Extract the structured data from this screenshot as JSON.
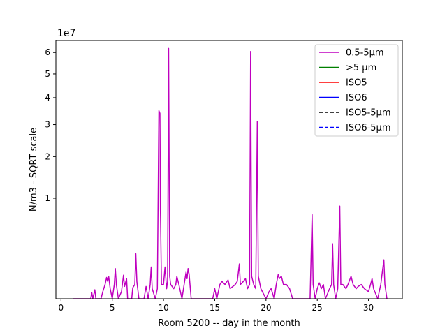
{
  "chart_data": {
    "type": "line",
    "xlabel": "Room 5200 -- day in the month",
    "ylabel": "N/m3 - SQRT scale",
    "y_offset_label": "1e7",
    "y_scale": "sqrt",
    "xlim": [
      -0.5,
      33.3
    ],
    "ylim": [
      0,
      6.6
    ],
    "x_ticks": [
      0,
      5,
      10,
      15,
      20,
      25,
      30
    ],
    "x_tick_labels": [
      "0",
      "5",
      "10",
      "15",
      "20",
      "25",
      "30"
    ],
    "y_ticks": [
      1,
      2,
      3,
      4,
      5,
      6
    ],
    "y_tick_labels": [
      "1",
      "2",
      "3",
      "4",
      "5",
      "6"
    ],
    "legend_position": "top-right",
    "grid": false,
    "series": [
      {
        "name": "0.5-5µm",
        "color": "#bf00bf",
        "dash": "solid",
        "points": [
          [
            1.2,
            0
          ],
          [
            2.9,
            0
          ],
          [
            3.0,
            0.004
          ],
          [
            3.1,
            0
          ],
          [
            3.3,
            0.008
          ],
          [
            3.4,
            0
          ],
          [
            3.9,
            0
          ],
          [
            4.1,
            0.006
          ],
          [
            4.3,
            0.02
          ],
          [
            4.45,
            0.045
          ],
          [
            4.55,
            0.03
          ],
          [
            4.65,
            0.05
          ],
          [
            4.8,
            0.01
          ],
          [
            5.0,
            0
          ],
          [
            5.2,
            0.02
          ],
          [
            5.3,
            0.09
          ],
          [
            5.4,
            0.02
          ],
          [
            5.6,
            0
          ],
          [
            5.9,
            0.005
          ],
          [
            6.1,
            0.055
          ],
          [
            6.2,
            0.015
          ],
          [
            6.4,
            0.04
          ],
          [
            6.5,
            0
          ],
          [
            6.9,
            0
          ],
          [
            7.0,
            0.012
          ],
          [
            7.2,
            0.02
          ],
          [
            7.3,
            0.2
          ],
          [
            7.4,
            0.03
          ],
          [
            7.6,
            0
          ],
          [
            8.1,
            0
          ],
          [
            8.3,
            0.015
          ],
          [
            8.5,
            0
          ],
          [
            8.7,
            0.02
          ],
          [
            8.8,
            0.1
          ],
          [
            8.9,
            0.01
          ],
          [
            9.2,
            0
          ],
          [
            9.4,
            0.01
          ],
          [
            9.55,
            3.5
          ],
          [
            9.65,
            3.4
          ],
          [
            9.7,
            0.8
          ],
          [
            9.8,
            0.02
          ],
          [
            10.0,
            0.02
          ],
          [
            10.15,
            0.1
          ],
          [
            10.3,
            0.01
          ],
          [
            10.4,
            0.03
          ],
          [
            10.5,
            6.2
          ],
          [
            10.6,
            0.05
          ],
          [
            10.7,
            0.02
          ],
          [
            11.0,
            0.01
          ],
          [
            11.2,
            0.02
          ],
          [
            11.3,
            0.05
          ],
          [
            11.5,
            0.02
          ],
          [
            11.8,
            0
          ],
          [
            12.1,
            0.04
          ],
          [
            12.2,
            0.07
          ],
          [
            12.3,
            0.04
          ],
          [
            12.4,
            0.09
          ],
          [
            12.5,
            0.06
          ],
          [
            12.7,
            0
          ],
          [
            14.8,
            0
          ],
          [
            15.0,
            0.01
          ],
          [
            15.2,
            0
          ],
          [
            15.5,
            0.02
          ],
          [
            15.7,
            0.03
          ],
          [
            16.0,
            0.02
          ],
          [
            16.3,
            0.035
          ],
          [
            16.5,
            0.01
          ],
          [
            17.0,
            0.02
          ],
          [
            17.2,
            0.03
          ],
          [
            17.4,
            0.12
          ],
          [
            17.5,
            0.02
          ],
          [
            17.8,
            0.03
          ],
          [
            18.0,
            0.04
          ],
          [
            18.2,
            0.01
          ],
          [
            18.4,
            0.02
          ],
          [
            18.5,
            6.05
          ],
          [
            18.6,
            0.05
          ],
          [
            18.8,
            0.02
          ],
          [
            19.0,
            0.01
          ],
          [
            19.15,
            3.1
          ],
          [
            19.25,
            0.05
          ],
          [
            19.5,
            0.01
          ],
          [
            20.0,
            0
          ],
          [
            20.3,
            0.005
          ],
          [
            20.5,
            0.01
          ],
          [
            20.8,
            0
          ],
          [
            21.0,
            0.02
          ],
          [
            21.2,
            0.06
          ],
          [
            21.3,
            0.04
          ],
          [
            21.5,
            0.05
          ],
          [
            21.7,
            0.02
          ],
          [
            22.0,
            0.02
          ],
          [
            22.3,
            0.01
          ],
          [
            22.6,
            0
          ],
          [
            24.3,
            0
          ],
          [
            24.5,
            0.7
          ],
          [
            24.6,
            0.02
          ],
          [
            24.8,
            0
          ],
          [
            25.0,
            0.01
          ],
          [
            25.2,
            0.025
          ],
          [
            25.4,
            0.01
          ],
          [
            25.6,
            0.02
          ],
          [
            25.8,
            0
          ],
          [
            26.2,
            0.01
          ],
          [
            26.4,
            0.02
          ],
          [
            26.5,
            0.3
          ],
          [
            26.6,
            0.02
          ],
          [
            26.8,
            0
          ],
          [
            27.0,
            0.01
          ],
          [
            27.2,
            0.85
          ],
          [
            27.3,
            0.02
          ],
          [
            27.5,
            0.02
          ],
          [
            27.8,
            0.01
          ],
          [
            28.0,
            0.02
          ],
          [
            28.3,
            0.05
          ],
          [
            28.5,
            0.02
          ],
          [
            28.8,
            0.01
          ],
          [
            29.0,
            0.015
          ],
          [
            29.3,
            0.02
          ],
          [
            29.6,
            0.01
          ],
          [
            30.0,
            0.005
          ],
          [
            30.2,
            0.02
          ],
          [
            30.35,
            0.04
          ],
          [
            30.5,
            0.01
          ],
          [
            30.9,
            0
          ],
          [
            31.2,
            0.02
          ],
          [
            31.3,
            0.05
          ],
          [
            31.5,
            0.15
          ],
          [
            31.6,
            0.02
          ],
          [
            31.8,
            0
          ]
        ]
      },
      {
        "name": ">5 µm",
        "color": "#008000",
        "dash": "solid",
        "points": []
      },
      {
        "name": "ISO5",
        "color": "#ff0000",
        "dash": "solid",
        "points": []
      },
      {
        "name": "ISO6",
        "color": "#0000ff",
        "dash": "solid",
        "points": []
      },
      {
        "name": "ISO5-5µm",
        "color": "#000000",
        "dash": "dashed",
        "points": []
      },
      {
        "name": "ISO6-5µm",
        "color": "#0000ff",
        "dash": "dashed",
        "points": []
      }
    ]
  }
}
